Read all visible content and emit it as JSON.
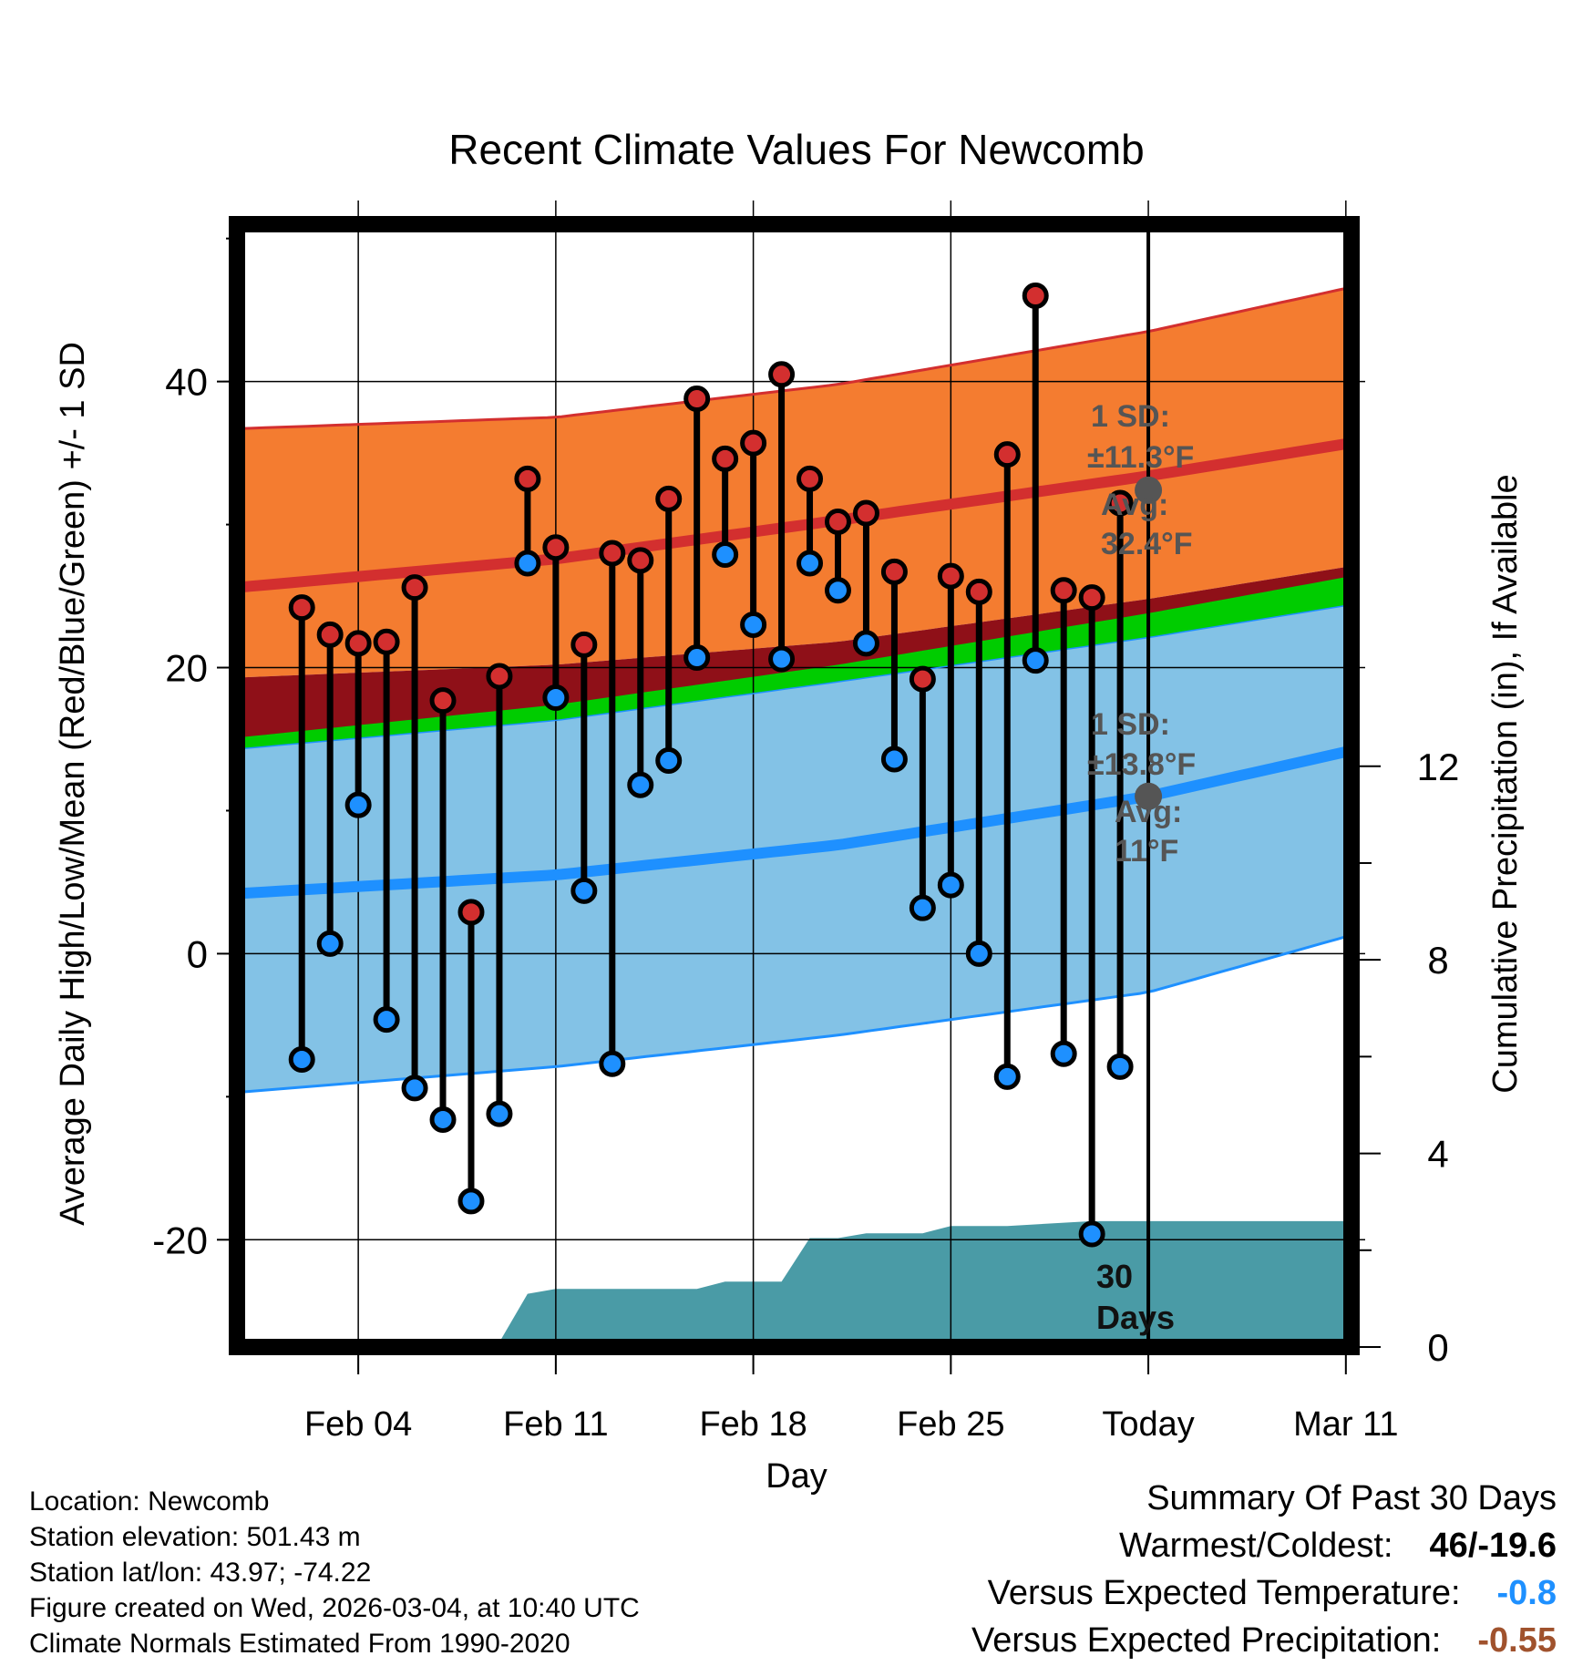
{
  "chart_data": {
    "type": "line",
    "title": "Recent Climate Values For Newcomb",
    "xlabel": "Day",
    "ylabel": "Average Daily High/Low/Mean (Red/Blue/Green) +/- 1 SD",
    "y2label": "Cumulative Precipitation (in), If Available",
    "ylim": [
      -27.5,
      51
    ],
    "y2lim": [
      0,
      23.2
    ],
    "xlim": [
      -1.3,
      38.2
    ],
    "yticks": [
      -20,
      0,
      20,
      40
    ],
    "y2ticks": [
      0,
      4,
      8,
      12
    ],
    "xticks": [
      {
        "day": 3,
        "label": "Feb 04"
      },
      {
        "day": 10,
        "label": "Feb 11"
      },
      {
        "day": 17,
        "label": "Feb 18"
      },
      {
        "day": 24,
        "label": "Feb 25"
      },
      {
        "day": 31,
        "label": "Today"
      },
      {
        "day": 38,
        "label": "Mar 11"
      }
    ],
    "today_day": 31,
    "highs": [
      24.2,
      22.3,
      21.7,
      21.8,
      25.6,
      17.7,
      2.9,
      19.4,
      33.2,
      28.4,
      21.6,
      28.0,
      27.5,
      31.8,
      38.8,
      34.6,
      35.7,
      40.5,
      33.2,
      30.2,
      30.8,
      26.7,
      19.2,
      26.4,
      25.3,
      34.9,
      46.0,
      25.4,
      24.9,
      31.5
    ],
    "lows": [
      -7.4,
      0.7,
      10.4,
      -4.6,
      -9.4,
      -11.6,
      -17.3,
      -11.2,
      27.3,
      17.9,
      4.4,
      -7.7,
      11.8,
      13.5,
      20.7,
      27.9,
      23.0,
      20.6,
      27.3,
      25.4,
      21.7,
      13.6,
      3.2,
      4.8,
      0.0,
      -8.6,
      20.5,
      -7.0,
      -19.6,
      -7.9
    ],
    "series": [
      {
        "name": "Normal High",
        "color": "#d52a27",
        "values_at_days": [
          [
            -1.3,
            25.6
          ],
          [
            10,
            27.6
          ],
          [
            20,
            30.3
          ],
          [
            31,
            33.4
          ],
          [
            38.2,
            35.7
          ]
        ]
      },
      {
        "name": "High +1 SD",
        "color": "#d52a27",
        "values_at_days": [
          [
            -1.3,
            36.7
          ],
          [
            10,
            37.5
          ],
          [
            20,
            39.8
          ],
          [
            31,
            43.5
          ],
          [
            38.2,
            46.6
          ]
        ]
      },
      {
        "name": "High -1 SD",
        "values_at_days": [
          [
            -1.3,
            14.3
          ],
          [
            10,
            16.3
          ],
          [
            20,
            19.0
          ],
          [
            31,
            22.1
          ],
          [
            38.2,
            24.4
          ]
        ]
      },
      {
        "name": "Normal Mean",
        "values_at_days": [
          [
            -1.3,
            19.3
          ],
          [
            10,
            20.2
          ],
          [
            20,
            21.8
          ],
          [
            31,
            24.8
          ],
          [
            38.2,
            27.1
          ]
        ]
      },
      {
        "name": "Normal Low",
        "color": "#1e90ff",
        "values_at_days": [
          [
            -1.3,
            4.2
          ],
          [
            10,
            5.5
          ],
          [
            20,
            7.6
          ],
          [
            31,
            11.0
          ],
          [
            38.2,
            14.2
          ]
        ]
      },
      {
        "name": "Low +1 SD",
        "values_at_days": [
          [
            -1.3,
            15.1
          ],
          [
            10,
            17.4
          ],
          [
            20,
            20.2
          ],
          [
            31,
            23.8
          ],
          [
            38.2,
            26.4
          ]
        ]
      },
      {
        "name": "Low -1 SD",
        "color": "#1e90ff",
        "values_at_days": [
          [
            -1.3,
            -9.7
          ],
          [
            10,
            -7.9
          ],
          [
            20,
            -5.7
          ],
          [
            31,
            -2.7
          ],
          [
            38.2,
            1.3
          ]
        ]
      },
      {
        "name": "Cumulative Precipitation",
        "color": "#4a9ba6",
        "values_at_days": [
          [
            6.8,
            0
          ],
          [
            7.9,
            0
          ],
          [
            9,
            1.1
          ],
          [
            10,
            1.2
          ],
          [
            13,
            1.2
          ],
          [
            15,
            1.2
          ],
          [
            16,
            1.35
          ],
          [
            18,
            1.35
          ],
          [
            19,
            2.25
          ],
          [
            20,
            2.25
          ],
          [
            21,
            2.35
          ],
          [
            23,
            2.35
          ],
          [
            24,
            2.5
          ],
          [
            26,
            2.5
          ],
          [
            29,
            2.6
          ],
          [
            31,
            2.6
          ],
          [
            38.2,
            2.6
          ]
        ]
      }
    ],
    "annotations": {
      "high_sd": "1 SD:",
      "high_sd_value": "±11.3°F",
      "high_avg_label": "Avg:",
      "high_avg_value": "32.4°F",
      "low_sd": "1 SD:",
      "low_sd_value": "±13.8°F",
      "low_avg_label": "Avg:",
      "low_avg_value": "11°F",
      "days_num": "30",
      "days_label": "Days"
    },
    "colors": {
      "high_band": "#f47c30",
      "mean_band": "#8f1018",
      "green_band": "#00cc00",
      "low_band": "#83c2e6",
      "precip": "#4a9ba6",
      "high_dot": "#d32f2f",
      "low_dot": "#1e90ff",
      "annotation": "#555555"
    }
  },
  "info": {
    "location": "Location: Newcomb",
    "elevation": "Station elevation: 501.43 m",
    "latlon": "Station lat/lon: 43.97; -74.22",
    "created": "Figure created on Wed, 2026-03-04, at 10:40 UTC",
    "normals": "Climate Normals Estimated From 1990-2020"
  },
  "summary": {
    "title": "Summary Of Past 30 Days",
    "warm_cold_label": "Warmest/Coldest:",
    "warm_cold_value": "46/-19.6",
    "temp_label": "Versus Expected Temperature:",
    "temp_value": "-0.8",
    "temp_color": "#1e90ff",
    "precip_label": "Versus Expected Precipitation:",
    "precip_value": "-0.55",
    "precip_color": "#a0522d"
  }
}
